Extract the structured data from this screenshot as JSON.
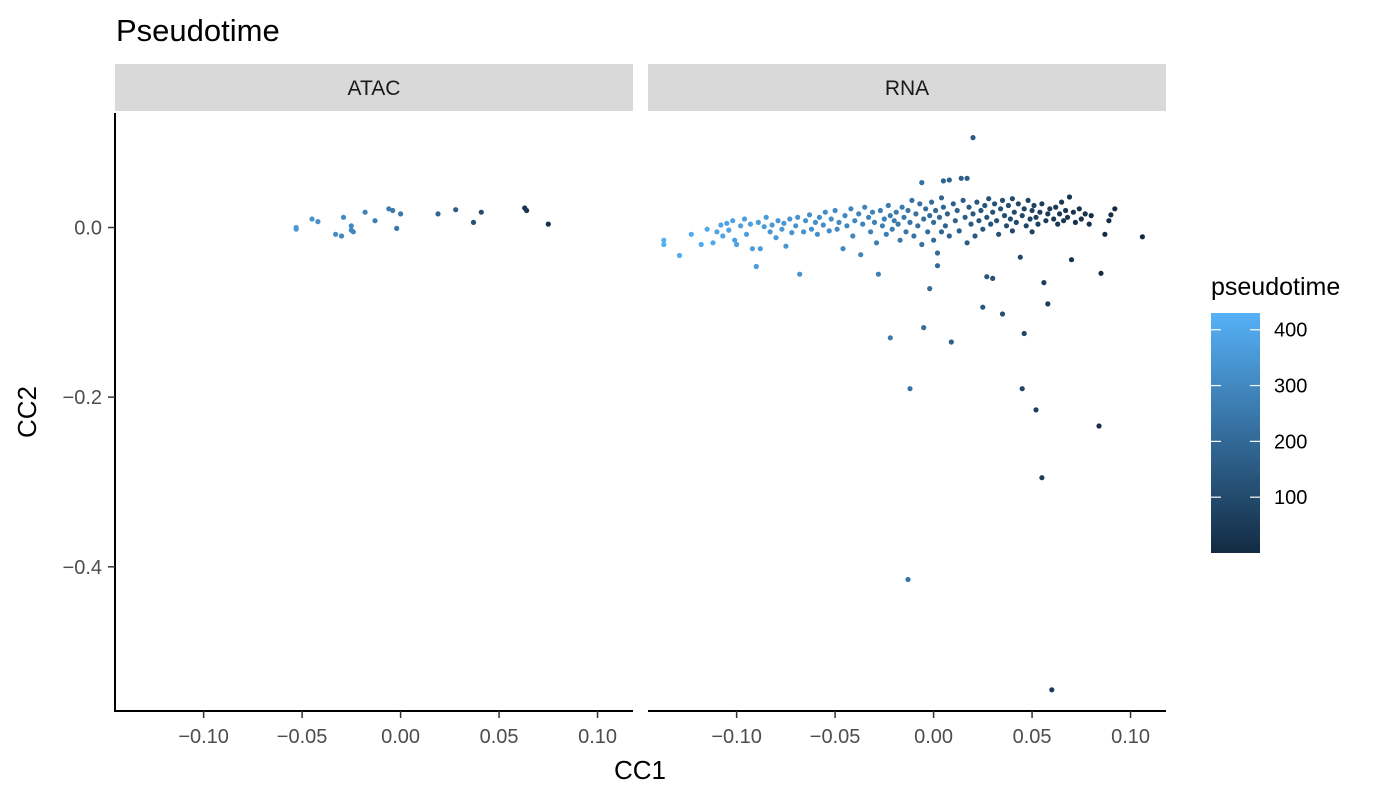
{
  "chart_data": {
    "type": "scatter",
    "title": "Pseudotime",
    "xlabel": "CC1",
    "ylabel": "CC2",
    "xlim": [
      -0.145,
      0.118
    ],
    "ylim": [
      -0.57,
      0.135
    ],
    "x_ticks": [
      -0.1,
      -0.05,
      0.0,
      0.05,
      0.1
    ],
    "x_tick_labels": [
      "−0.10",
      "−0.05",
      "0.00",
      "0.05",
      "0.10"
    ],
    "y_ticks": [
      0.0,
      -0.2,
      -0.4
    ],
    "y_tick_labels": [
      "0.0",
      "−0.2",
      "−0.4"
    ],
    "grid": false,
    "legend": {
      "title": "pseudotime",
      "placement": "right",
      "type": "colorbar",
      "range": [
        0,
        430
      ],
      "ticks": [
        100,
        200,
        300,
        400
      ],
      "tick_labels": [
        "100",
        "200",
        "300",
        "400"
      ],
      "color_low": "#132B43",
      "color_high": "#56B1F7"
    },
    "panels": [
      {
        "label": "ATAC",
        "points": [
          [
            -0.053,
            -0.002,
            355
          ],
          [
            -0.053,
            0.0,
            350
          ],
          [
            -0.045,
            0.01,
            330
          ],
          [
            -0.042,
            0.007,
            320
          ],
          [
            -0.033,
            -0.008,
            310
          ],
          [
            -0.03,
            -0.01,
            300
          ],
          [
            -0.029,
            0.012,
            305
          ],
          [
            -0.025,
            -0.003,
            298
          ],
          [
            -0.025,
            0.002,
            300
          ],
          [
            -0.024,
            -0.005,
            295
          ],
          [
            -0.018,
            0.018,
            280
          ],
          [
            -0.013,
            0.008,
            270
          ],
          [
            -0.006,
            0.022,
            255
          ],
          [
            -0.004,
            0.02,
            250
          ],
          [
            -0.002,
            -0.001,
            245
          ],
          [
            0.0,
            0.016,
            240
          ],
          [
            0.019,
            0.016,
            190
          ],
          [
            0.028,
            0.021,
            160
          ],
          [
            0.037,
            0.006,
            120
          ],
          [
            0.041,
            0.018,
            110
          ],
          [
            0.063,
            0.023,
            40
          ],
          [
            0.064,
            0.02,
            35
          ],
          [
            0.075,
            0.004,
            20
          ]
        ]
      },
      {
        "label": "RNA",
        "points": [
          [
            -0.137,
            -0.015,
            425
          ],
          [
            -0.137,
            -0.02,
            420
          ],
          [
            -0.129,
            -0.033,
            410
          ],
          [
            -0.123,
            -0.008,
            405
          ],
          [
            -0.118,
            -0.02,
            402
          ],
          [
            -0.115,
            -0.002,
            400
          ],
          [
            -0.112,
            -0.018,
            395
          ],
          [
            -0.11,
            -0.005,
            392
          ],
          [
            -0.108,
            0.003,
            390
          ],
          [
            -0.107,
            -0.01,
            388
          ],
          [
            -0.105,
            0.005,
            385
          ],
          [
            -0.104,
            -0.003,
            383
          ],
          [
            -0.102,
            0.008,
            380
          ],
          [
            -0.101,
            -0.015,
            378
          ],
          [
            -0.1,
            -0.02,
            376
          ],
          [
            -0.098,
            0.002,
            374
          ],
          [
            -0.096,
            0.01,
            372
          ],
          [
            -0.095,
            -0.008,
            370
          ],
          [
            -0.093,
            0.004,
            368
          ],
          [
            -0.092,
            -0.025,
            366
          ],
          [
            -0.09,
            -0.046,
            364
          ],
          [
            -0.089,
            0.006,
            362
          ],
          [
            -0.088,
            -0.025,
            360
          ],
          [
            -0.086,
            0.001,
            358
          ],
          [
            -0.085,
            0.012,
            356
          ],
          [
            -0.083,
            -0.005,
            354
          ],
          [
            -0.082,
            0.003,
            352
          ],
          [
            -0.08,
            -0.012,
            350
          ],
          [
            -0.079,
            0.008,
            348
          ],
          [
            -0.077,
            -0.002,
            346
          ],
          [
            -0.076,
            0.005,
            344
          ],
          [
            -0.075,
            -0.022,
            342
          ],
          [
            -0.073,
            0.01,
            340
          ],
          [
            -0.072,
            -0.006,
            338
          ],
          [
            -0.07,
            0.002,
            336
          ],
          [
            -0.069,
            0.012,
            334
          ],
          [
            -0.068,
            -0.055,
            332
          ],
          [
            -0.066,
            -0.005,
            330
          ],
          [
            -0.065,
            0.008,
            328
          ],
          [
            -0.063,
            0.015,
            326
          ],
          [
            -0.062,
            -0.002,
            324
          ],
          [
            -0.06,
            0.006,
            322
          ],
          [
            -0.059,
            -0.008,
            320
          ],
          [
            -0.058,
            0.012,
            318
          ],
          [
            -0.056,
            0.003,
            316
          ],
          [
            -0.055,
            0.018,
            314
          ],
          [
            -0.053,
            -0.004,
            312
          ],
          [
            -0.052,
            0.01,
            310
          ],
          [
            -0.05,
            0.02,
            308
          ],
          [
            -0.049,
            -0.002,
            306
          ],
          [
            -0.048,
            0.006,
            304
          ],
          [
            -0.046,
            -0.025,
            302
          ],
          [
            -0.045,
            0.014,
            300
          ],
          [
            -0.044,
            0.002,
            298
          ],
          [
            -0.042,
            0.022,
            296
          ],
          [
            -0.041,
            -0.01,
            294
          ],
          [
            -0.04,
            0.008,
            292
          ],
          [
            -0.038,
            0.016,
            290
          ],
          [
            -0.037,
            -0.032,
            288
          ],
          [
            -0.036,
            0.004,
            286
          ],
          [
            -0.035,
            0.024,
            284
          ],
          [
            -0.033,
            0.012,
            282
          ],
          [
            -0.032,
            -0.005,
            280
          ],
          [
            -0.031,
            0.018,
            278
          ],
          [
            -0.03,
            0.006,
            276
          ],
          [
            -0.029,
            -0.018,
            274
          ],
          [
            -0.028,
            -0.055,
            272
          ],
          [
            -0.027,
            0.02,
            270
          ],
          [
            -0.026,
            0.002,
            268
          ],
          [
            -0.025,
            0.01,
            266
          ],
          [
            -0.024,
            -0.008,
            264
          ],
          [
            -0.023,
            0.026,
            262
          ],
          [
            -0.022,
            0.014,
            260
          ],
          [
            -0.022,
            -0.13,
            258
          ],
          [
            -0.021,
            -0.002,
            256
          ],
          [
            -0.02,
            0.008,
            254
          ],
          [
            -0.019,
            0.018,
            252
          ],
          [
            -0.018,
            0.004,
            250
          ],
          [
            -0.017,
            -0.015,
            248
          ],
          [
            -0.016,
            0.024,
            246
          ],
          [
            -0.015,
            0.012,
            244
          ],
          [
            -0.014,
            -0.005,
            242
          ],
          [
            -0.013,
            0.02,
            240
          ],
          [
            -0.013,
            -0.415,
            238
          ],
          [
            -0.012,
            -0.19,
            236
          ],
          [
            -0.012,
            0.006,
            234
          ],
          [
            -0.011,
            0.032,
            232
          ],
          [
            -0.01,
            -0.01,
            230
          ],
          [
            -0.009,
            0.016,
            228
          ],
          [
            -0.008,
            0.002,
            226
          ],
          [
            -0.007,
            0.028,
            224
          ],
          [
            -0.006,
            -0.02,
            222
          ],
          [
            -0.006,
            0.053,
            220
          ],
          [
            -0.005,
            0.01,
            218
          ],
          [
            -0.005,
            -0.118,
            216
          ],
          [
            -0.004,
            0.022,
            214
          ],
          [
            -0.003,
            -0.005,
            212
          ],
          [
            -0.002,
            0.014,
            210
          ],
          [
            -0.002,
            -0.072,
            208
          ],
          [
            -0.001,
            0.03,
            206
          ],
          [
            0.0,
            0.006,
            204
          ],
          [
            0.0,
            -0.015,
            202
          ],
          [
            0.001,
            0.02,
            200
          ],
          [
            0.002,
            -0.03,
            198
          ],
          [
            0.002,
            -0.045,
            196
          ],
          [
            0.003,
            0.012,
            194
          ],
          [
            0.004,
            -0.005,
            192
          ],
          [
            0.004,
            0.035,
            190
          ],
          [
            0.005,
            0.024,
            188
          ],
          [
            0.005,
            0.055,
            186
          ],
          [
            0.006,
            0.002,
            184
          ],
          [
            0.007,
            0.016,
            182
          ],
          [
            0.008,
            0.056,
            180
          ],
          [
            0.008,
            -0.01,
            178
          ],
          [
            0.009,
            -0.135,
            176
          ],
          [
            0.01,
            0.028,
            174
          ],
          [
            0.011,
            0.008,
            172
          ],
          [
            0.012,
            0.02,
            170
          ],
          [
            0.013,
            -0.004,
            168
          ],
          [
            0.014,
            0.058,
            166
          ],
          [
            0.015,
            0.032,
            164
          ],
          [
            0.016,
            0.012,
            162
          ],
          [
            0.017,
            -0.018,
            160
          ],
          [
            0.017,
            0.058,
            158
          ],
          [
            0.018,
            0.024,
            156
          ],
          [
            0.019,
            0.004,
            154
          ],
          [
            0.02,
            0.106,
            152
          ],
          [
            0.02,
            0.016,
            150
          ],
          [
            0.021,
            -0.01,
            148
          ],
          [
            0.022,
            0.03,
            146
          ],
          [
            0.023,
            0.008,
            144
          ],
          [
            0.024,
            0.02,
            142
          ],
          [
            0.025,
            -0.094,
            140
          ],
          [
            0.025,
            -0.002,
            138
          ],
          [
            0.026,
            0.026,
            136
          ],
          [
            0.027,
            -0.058,
            134
          ],
          [
            0.027,
            0.012,
            132
          ],
          [
            0.028,
            0.034,
            130
          ],
          [
            0.029,
            0.004,
            128
          ],
          [
            0.03,
            -0.06,
            126
          ],
          [
            0.03,
            0.018,
            124
          ],
          [
            0.031,
            0.028,
            122
          ],
          [
            0.032,
            0.008,
            120
          ],
          [
            0.033,
            -0.008,
            118
          ],
          [
            0.034,
            0.022,
            116
          ],
          [
            0.035,
            -0.102,
            114
          ],
          [
            0.035,
            0.032,
            112
          ],
          [
            0.036,
            0.014,
            110
          ],
          [
            0.037,
            0.002,
            108
          ],
          [
            0.038,
            0.026,
            106
          ],
          [
            0.039,
            0.01,
            104
          ],
          [
            0.04,
            0.034,
            102
          ],
          [
            0.04,
            -0.004,
            100
          ],
          [
            0.041,
            0.018,
            98
          ],
          [
            0.042,
            0.006,
            96
          ],
          [
            0.043,
            0.028,
            94
          ],
          [
            0.044,
            -0.035,
            92
          ],
          [
            0.045,
            0.014,
            90
          ],
          [
            0.045,
            -0.19,
            88
          ],
          [
            0.046,
            0.022,
            86
          ],
          [
            0.046,
            -0.125,
            84
          ],
          [
            0.047,
            0.002,
            82
          ],
          [
            0.048,
            0.032,
            80
          ],
          [
            0.049,
            0.01,
            78
          ],
          [
            0.05,
            0.02,
            76
          ],
          [
            0.05,
            -0.005,
            74
          ],
          [
            0.051,
            0.026,
            72
          ],
          [
            0.052,
            -0.215,
            70
          ],
          [
            0.052,
            0.012,
            68
          ],
          [
            0.053,
            0.004,
            66
          ],
          [
            0.054,
            0.018,
            64
          ],
          [
            0.055,
            -0.295,
            62
          ],
          [
            0.055,
            0.028,
            60
          ],
          [
            0.056,
            -0.065,
            58
          ],
          [
            0.057,
            0.008,
            56
          ],
          [
            0.058,
            -0.09,
            54
          ],
          [
            0.058,
            0.016,
            52
          ],
          [
            0.059,
            0.022,
            50
          ],
          [
            0.06,
            -0.545,
            48
          ],
          [
            0.061,
            0.01,
            46
          ],
          [
            0.062,
            0.024,
            44
          ],
          [
            0.063,
            0.004,
            42
          ],
          [
            0.064,
            0.016,
            40
          ],
          [
            0.065,
            0.03,
            38
          ],
          [
            0.066,
            0.008,
            36
          ],
          [
            0.067,
            0.02,
            34
          ],
          [
            0.068,
            0.012,
            32
          ],
          [
            0.069,
            0.036,
            30
          ],
          [
            0.07,
            -0.038,
            28
          ],
          [
            0.071,
            0.018,
            26
          ],
          [
            0.072,
            0.006,
            24
          ],
          [
            0.074,
            0.022,
            22
          ],
          [
            0.075,
            0.01,
            20
          ],
          [
            0.077,
            0.016,
            18
          ],
          [
            0.079,
            0.004,
            16
          ],
          [
            0.08,
            0.014,
            14
          ],
          [
            0.084,
            -0.234,
            12
          ],
          [
            0.085,
            -0.054,
            10
          ],
          [
            0.087,
            -0.008,
            8
          ],
          [
            0.089,
            0.008,
            6
          ],
          [
            0.09,
            0.015,
            5
          ],
          [
            0.092,
            0.022,
            4
          ],
          [
            0.106,
            -0.011,
            2
          ]
        ]
      }
    ]
  }
}
